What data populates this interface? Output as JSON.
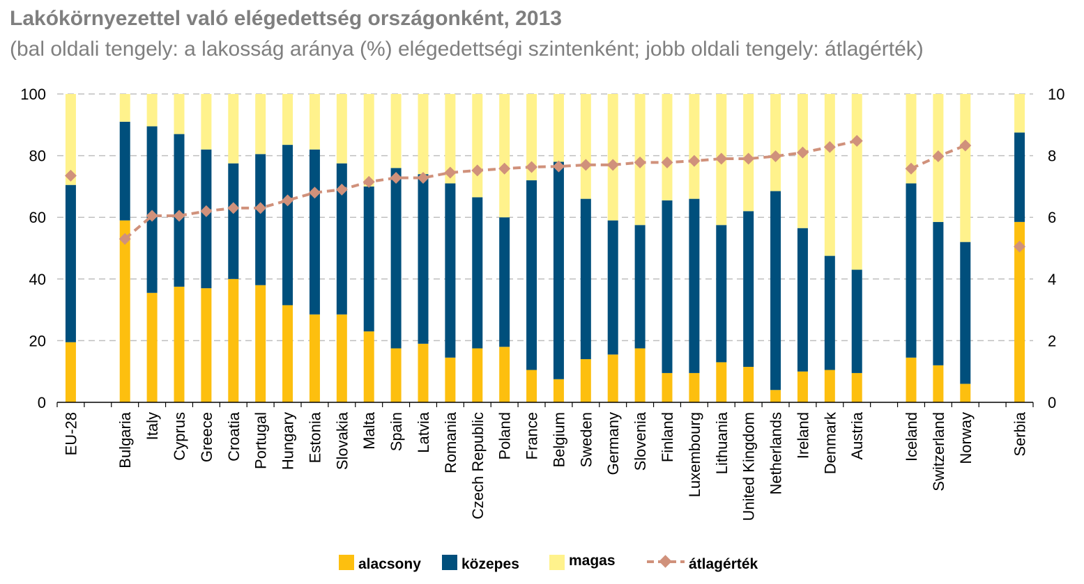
{
  "chart_data": {
    "type": "bar",
    "stacked": true,
    "title": "Lakókörnyezettel való elégedettség országonként, 2013",
    "subtitle": "(bal oldali tengely: a lakosság aránya (%) elégedettségi szintenként; jobb oldali tengely: átlagérték)",
    "left_axis": {
      "ylim": [
        0,
        100
      ],
      "ticks": [
        "0",
        "20",
        "40",
        "60",
        "80",
        "100"
      ]
    },
    "right_axis": {
      "ylim": [
        0,
        10
      ],
      "ticks": [
        "0",
        "2",
        "4",
        "6",
        "8",
        "10"
      ]
    },
    "categories": [
      "EU-28",
      "",
      "Bulgaria",
      "Italy",
      "Cyprus",
      "Greece",
      "Croatia",
      "Portugal",
      "Hungary",
      "Estonia",
      "Slovakia",
      "Malta",
      "Spain",
      "Latvia",
      "Romania",
      "Czech Republic",
      "Poland",
      "France",
      "Belgium",
      "Sweden",
      "Germany",
      "Slovenia",
      "Finland",
      "Luxembourg",
      "Lithuania",
      "United Kingdom",
      "Netherlands",
      "Ireland",
      "Denmark",
      "Austria",
      "",
      "Iceland",
      "Switzerland",
      "Norway",
      "",
      "Serbia"
    ],
    "series": [
      {
        "name": "alacsony",
        "color": "#FDBF0F",
        "values": [
          19.5,
          null,
          59,
          35.5,
          37.5,
          37,
          40,
          38,
          31.5,
          28.5,
          28.5,
          23,
          17.5,
          19,
          14.5,
          17.5,
          18,
          10.5,
          7.5,
          14,
          15.5,
          17.5,
          9.5,
          9.5,
          13,
          11.5,
          4,
          10,
          10.5,
          9.5,
          null,
          14.5,
          12,
          6,
          null,
          58.5
        ]
      },
      {
        "name": "közepes",
        "color": "#004F7C",
        "values": [
          51,
          null,
          32,
          54,
          49.5,
          45,
          37.5,
          42.5,
          52,
          53.5,
          49,
          47,
          58.5,
          55,
          56.5,
          49,
          42,
          61.5,
          70.5,
          52,
          43.5,
          40,
          56,
          56.5,
          44.5,
          50.5,
          64.5,
          46.5,
          37,
          33.5,
          null,
          56.5,
          46.5,
          46,
          null,
          29
        ]
      },
      {
        "name": "magas",
        "color": "#FFF28C",
        "values": [
          29.5,
          null,
          9,
          10.5,
          13,
          18,
          22.5,
          19.5,
          16.5,
          18,
          22.5,
          30,
          24,
          26,
          29,
          33.5,
          40,
          28,
          22,
          34,
          41,
          42.5,
          34.5,
          34,
          42.5,
          38,
          31.5,
          43.5,
          52.5,
          57,
          null,
          29,
          41.5,
          48,
          null,
          12.5
        ]
      }
    ],
    "line": {
      "name": "átlagérték",
      "color": "#D0917B",
      "axis": "right",
      "values": [
        7.35,
        null,
        5.3,
        6.05,
        6.05,
        6.2,
        6.3,
        6.3,
        6.55,
        6.8,
        6.9,
        7.15,
        7.28,
        7.28,
        7.45,
        7.52,
        7.58,
        7.63,
        7.65,
        7.7,
        7.7,
        7.78,
        7.78,
        7.83,
        7.9,
        7.9,
        7.98,
        8.1,
        8.28,
        8.48,
        null,
        7.58,
        7.98,
        8.33,
        null,
        5.05
      ]
    },
    "legend": {
      "position": "bottom",
      "entries": [
        "alacsony",
        "közepes",
        "magas",
        "átlagérték"
      ]
    }
  }
}
